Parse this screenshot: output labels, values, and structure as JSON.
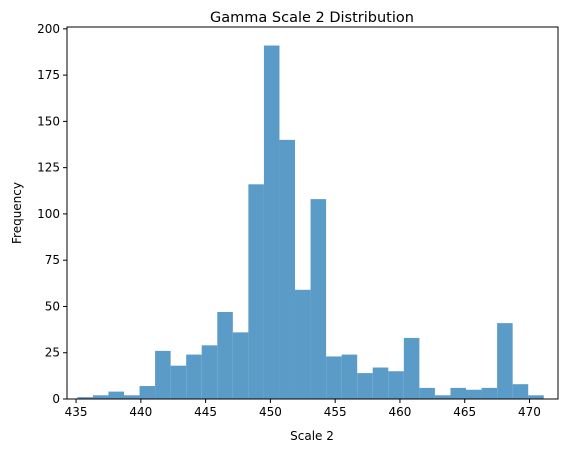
{
  "chart_data": {
    "type": "bar",
    "title": "Gamma Scale 2 Distribution",
    "xlabel": "Scale 2",
    "ylabel": "Frequency",
    "bar_color": "#5a9bc8",
    "xlim": [
      434.3,
      472.2
    ],
    "ylim": [
      0,
      201
    ],
    "xticks": [
      435,
      440,
      445,
      450,
      455,
      460,
      465,
      470
    ],
    "yticks": [
      0,
      25,
      50,
      75,
      100,
      125,
      150,
      175,
      200
    ],
    "bin_start": 435.1,
    "bin_width": 1.2,
    "values": [
      1,
      2,
      4,
      2,
      7,
      26,
      18,
      24,
      29,
      47,
      36,
      116,
      191,
      140,
      59,
      108,
      23,
      24,
      14,
      17,
      15,
      33,
      6,
      2,
      6,
      5,
      6,
      41,
      8,
      2
    ]
  }
}
